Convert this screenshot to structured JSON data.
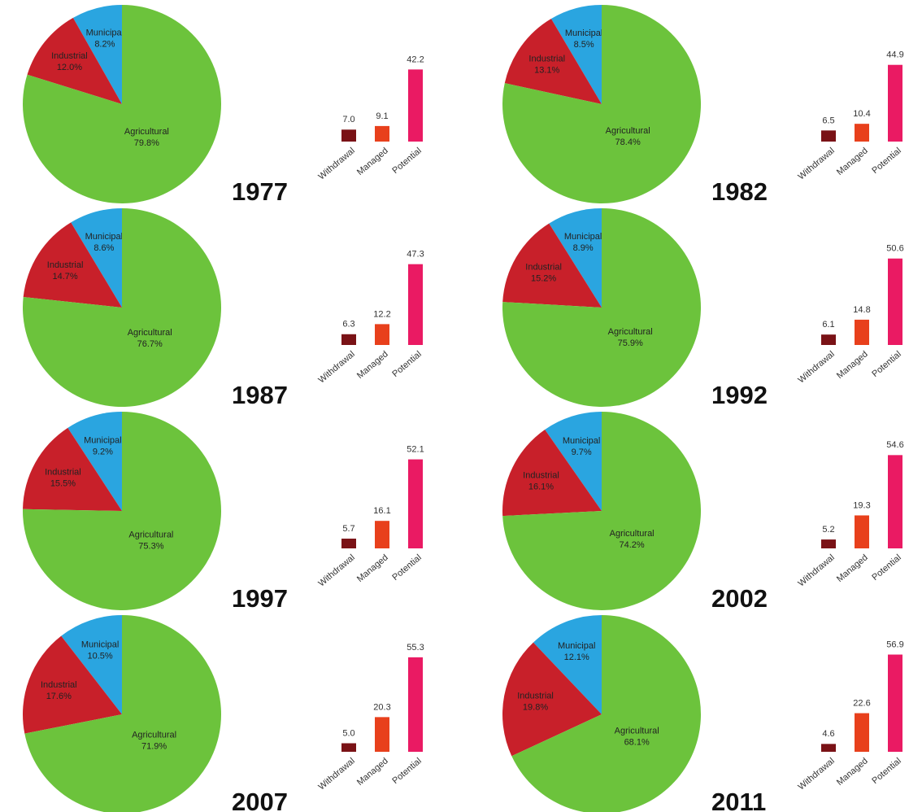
{
  "chart_data": [
    {
      "type": "pie",
      "title": "1977",
      "categories": [
        "Municipal",
        "Industrial",
        "Agricultural"
      ],
      "values": [
        8.2,
        12.0,
        79.8
      ],
      "value_labels": [
        "8.2%",
        "12.0%",
        "79.8%"
      ],
      "colors": [
        "#2aa5e0",
        "#c8202a",
        "#6cc33c"
      ]
    },
    {
      "type": "bar",
      "categories": [
        "Withdrawal",
        "Managed",
        "Potential"
      ],
      "values": [
        7.0,
        9.1,
        42.2
      ],
      "value_labels": [
        "7.0",
        "9.1",
        "42.2"
      ],
      "colors": [
        "#7a1216",
        "#e8401c",
        "#ea1a63"
      ]
    },
    {
      "type": "pie",
      "title": "1982",
      "categories": [
        "Municipal",
        "Industrial",
        "Agricultural"
      ],
      "values": [
        8.5,
        13.1,
        78.4
      ],
      "value_labels": [
        "8.5%",
        "13.1%",
        "78.4%"
      ],
      "colors": [
        "#2aa5e0",
        "#c8202a",
        "#6cc33c"
      ]
    },
    {
      "type": "bar",
      "categories": [
        "Withdrawal",
        "Managed",
        "Potential"
      ],
      "values": [
        6.5,
        10.4,
        44.9
      ],
      "value_labels": [
        "6.5",
        "10.4",
        "44.9"
      ],
      "colors": [
        "#7a1216",
        "#e8401c",
        "#ea1a63"
      ]
    },
    {
      "type": "pie",
      "title": "1987",
      "categories": [
        "Municipal",
        "Industrial",
        "Agricultural"
      ],
      "values": [
        8.6,
        14.7,
        76.7
      ],
      "value_labels": [
        "8.6%",
        "14.7%",
        "76.7%"
      ],
      "colors": [
        "#2aa5e0",
        "#c8202a",
        "#6cc33c"
      ]
    },
    {
      "type": "bar",
      "categories": [
        "Withdrawal",
        "Managed",
        "Potential"
      ],
      "values": [
        6.3,
        12.2,
        47.3
      ],
      "value_labels": [
        "6.3",
        "12.2",
        "47.3"
      ],
      "colors": [
        "#7a1216",
        "#e8401c",
        "#ea1a63"
      ]
    },
    {
      "type": "pie",
      "title": "1992",
      "categories": [
        "Municipal",
        "Industrial",
        "Agricultural"
      ],
      "values": [
        8.9,
        15.2,
        75.9
      ],
      "value_labels": [
        "8.9%",
        "15.2%",
        "75.9%"
      ],
      "colors": [
        "#2aa5e0",
        "#c8202a",
        "#6cc33c"
      ]
    },
    {
      "type": "bar",
      "categories": [
        "Withdrawal",
        "Managed",
        "Potential"
      ],
      "values": [
        6.1,
        14.8,
        50.6
      ],
      "value_labels": [
        "6.1",
        "14.8",
        "50.6"
      ],
      "colors": [
        "#7a1216",
        "#e8401c",
        "#ea1a63"
      ]
    },
    {
      "type": "pie",
      "title": "1997",
      "categories": [
        "Municipal",
        "Industrial",
        "Agricultural"
      ],
      "values": [
        9.2,
        15.5,
        75.3
      ],
      "value_labels": [
        "9.2%",
        "15.5%",
        "75.3%"
      ],
      "colors": [
        "#2aa5e0",
        "#c8202a",
        "#6cc33c"
      ]
    },
    {
      "type": "bar",
      "categories": [
        "Withdrawal",
        "Managed",
        "Potential"
      ],
      "values": [
        5.7,
        16.1,
        52.1
      ],
      "value_labels": [
        "5.7",
        "16.1",
        "52.1"
      ],
      "colors": [
        "#7a1216",
        "#e8401c",
        "#ea1a63"
      ]
    },
    {
      "type": "pie",
      "title": "2002",
      "categories": [
        "Municipal",
        "Industrial",
        "Agricultural"
      ],
      "values": [
        9.7,
        16.1,
        74.2
      ],
      "value_labels": [
        "9.7%",
        "16.1%",
        "74.2%"
      ],
      "colors": [
        "#2aa5e0",
        "#c8202a",
        "#6cc33c"
      ]
    },
    {
      "type": "bar",
      "categories": [
        "Withdrawal",
        "Managed",
        "Potential"
      ],
      "values": [
        5.2,
        19.3,
        54.6
      ],
      "value_labels": [
        "5.2",
        "19.3",
        "54.6"
      ],
      "colors": [
        "#7a1216",
        "#e8401c",
        "#ea1a63"
      ]
    },
    {
      "type": "pie",
      "title": "2007",
      "categories": [
        "Municipal",
        "Industrial",
        "Agricultural"
      ],
      "values": [
        10.5,
        17.6,
        71.9
      ],
      "value_labels": [
        "10.5%",
        "17.6%",
        "71.9%"
      ],
      "colors": [
        "#2aa5e0",
        "#c8202a",
        "#6cc33c"
      ]
    },
    {
      "type": "bar",
      "categories": [
        "Withdrawal",
        "Managed",
        "Potential"
      ],
      "values": [
        5.0,
        20.3,
        55.3
      ],
      "value_labels": [
        "5.0",
        "20.3",
        "55.3"
      ],
      "colors": [
        "#7a1216",
        "#e8401c",
        "#ea1a63"
      ]
    },
    {
      "type": "pie",
      "title": "2011",
      "categories": [
        "Municipal",
        "Industrial",
        "Agricultural"
      ],
      "values": [
        12.1,
        19.8,
        68.1
      ],
      "value_labels": [
        "12.1%",
        "19.8%",
        "68.1%"
      ],
      "colors": [
        "#2aa5e0",
        "#c8202a",
        "#6cc33c"
      ]
    },
    {
      "type": "bar",
      "categories": [
        "Withdrawal",
        "Managed",
        "Potential"
      ],
      "values": [
        4.6,
        22.6,
        56.9
      ],
      "value_labels": [
        "4.6",
        "22.6",
        "56.9"
      ],
      "colors": [
        "#7a1216",
        "#e8401c",
        "#ea1a63"
      ]
    }
  ]
}
